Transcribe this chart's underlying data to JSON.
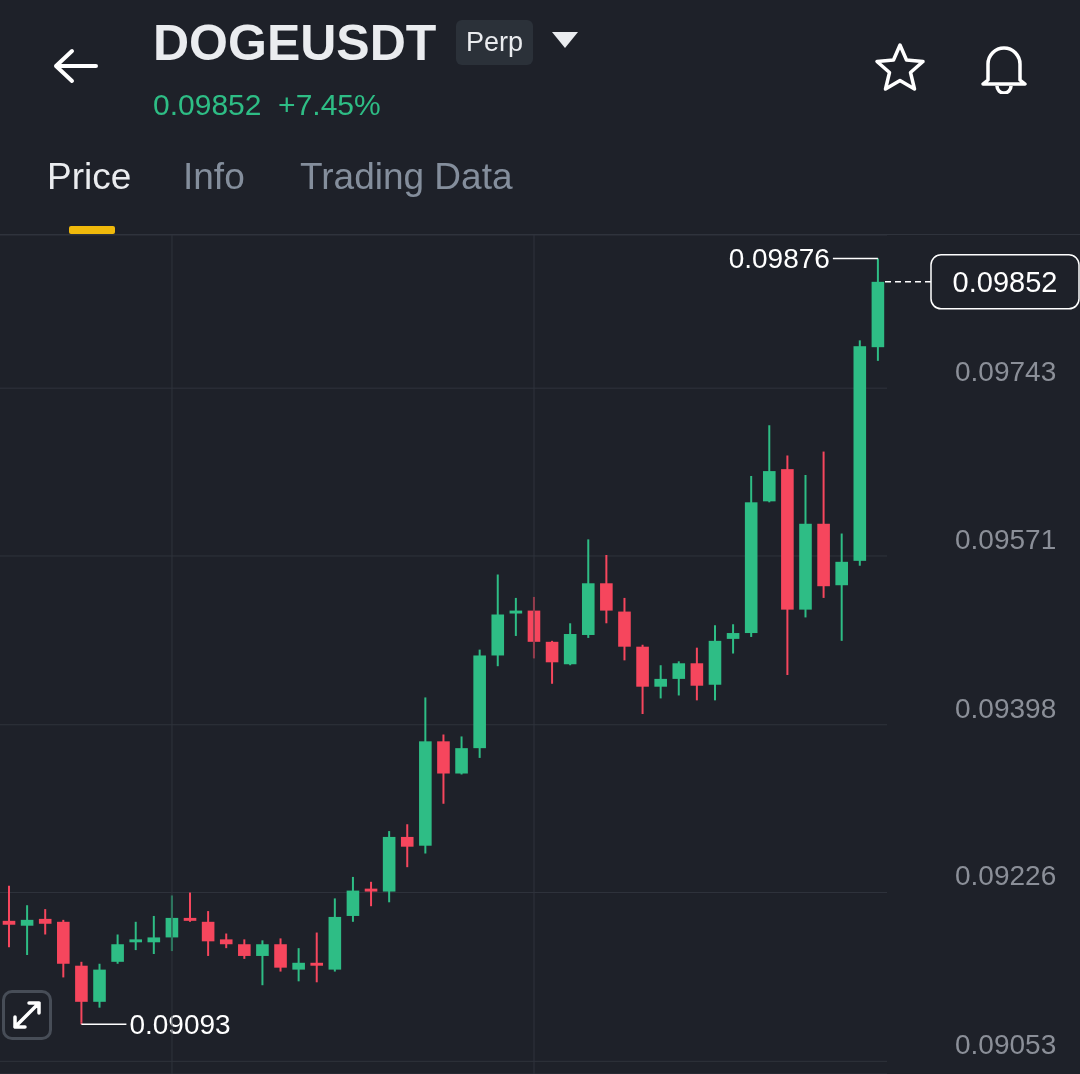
{
  "chart_data": {
    "type": "candlestick",
    "title": "DOGEUSDT",
    "subtitle": "Perp",
    "annotations": [
      "0.09852 +7.45%",
      "Price",
      "Info",
      "Trading Data",
      "0.09876",
      "0.09093"
    ],
    "categories": [
      null,
      null,
      null,
      null,
      null,
      null,
      null,
      null,
      null,
      null,
      null,
      null,
      null,
      null,
      null,
      null,
      null,
      null,
      null,
      null,
      null,
      null,
      null,
      null,
      null,
      null,
      null,
      null,
      null,
      null,
      null,
      null,
      null,
      null,
      null,
      null,
      null,
      null,
      null,
      null,
      null,
      null,
      null,
      null,
      null,
      null,
      null,
      null,
      null
    ],
    "ohlc": [
      [
        0.09197,
        0.09233,
        0.0917,
        0.09193
      ],
      [
        0.09192,
        0.09213,
        0.09162,
        0.09198
      ],
      [
        0.09199,
        0.09209,
        0.09183,
        0.09194
      ],
      [
        0.09196,
        0.09198,
        0.09139,
        0.09153
      ],
      [
        0.09151,
        0.09155,
        0.09093,
        0.09114
      ],
      [
        0.09114,
        0.09153,
        0.09108,
        0.09147
      ],
      [
        0.09155,
        0.09183,
        0.09153,
        0.09173
      ],
      [
        0.09175,
        0.09196,
        0.09167,
        0.09178
      ],
      [
        0.09175,
        0.09202,
        0.09163,
        0.0918
      ],
      [
        0.0918,
        0.09223,
        0.09166,
        0.092
      ],
      [
        0.092,
        0.09226,
        0.09196,
        0.09197
      ],
      [
        0.09196,
        0.09207,
        0.09161,
        0.09176
      ],
      [
        0.09178,
        0.09184,
        0.09169,
        0.09173
      ],
      [
        0.09173,
        0.09178,
        0.09158,
        0.09161
      ],
      [
        0.09161,
        0.09177,
        0.09131,
        0.09173
      ],
      [
        0.09173,
        0.09179,
        0.09145,
        0.09149
      ],
      [
        0.09147,
        0.09169,
        0.09135,
        0.09154
      ],
      [
        0.09154,
        0.09185,
        0.09134,
        0.09151
      ],
      [
        0.09147,
        0.0922,
        0.09145,
        0.09201
      ],
      [
        0.09202,
        0.09242,
        0.09196,
        0.09228
      ],
      [
        0.0923,
        0.09237,
        0.09212,
        0.09227
      ],
      [
        0.09227,
        0.09289,
        0.09216,
        0.09283
      ],
      [
        0.09283,
        0.09296,
        0.09252,
        0.09273
      ],
      [
        0.09274,
        0.09426,
        0.09266,
        0.09381
      ],
      [
        0.09381,
        0.09388,
        0.09317,
        0.09348
      ],
      [
        0.09348,
        0.09386,
        0.09347,
        0.09374
      ],
      [
        0.09374,
        0.09475,
        0.09364,
        0.09469
      ],
      [
        0.09469,
        0.09552,
        0.09458,
        0.09511
      ],
      [
        0.09512,
        0.09528,
        0.09489,
        0.09515
      ],
      [
        0.09515,
        0.09529,
        0.09466,
        0.09483
      ],
      [
        0.09483,
        0.09484,
        0.0944,
        0.09462
      ],
      [
        0.0946,
        0.09502,
        0.09459,
        0.09491
      ],
      [
        0.0949,
        0.09588,
        0.09487,
        0.09543
      ],
      [
        0.09543,
        0.09572,
        0.09502,
        0.09515
      ],
      [
        0.09514,
        0.09528,
        0.09464,
        0.09478
      ],
      [
        0.09478,
        0.0948,
        0.09409,
        0.09437
      ],
      [
        0.09437,
        0.09459,
        0.09425,
        0.09445
      ],
      [
        0.09445,
        0.09463,
        0.09428,
        0.09461
      ],
      [
        0.09461,
        0.09477,
        0.09423,
        0.09438
      ],
      [
        0.09439,
        0.095,
        0.09423,
        0.09484
      ],
      [
        0.09486,
        0.09501,
        0.09471,
        0.09492
      ],
      [
        0.09492,
        0.09653,
        0.09488,
        0.09626
      ],
      [
        0.09627,
        0.09705,
        0.09626,
        0.09658
      ],
      [
        0.0966,
        0.09674,
        0.09449,
        0.09516
      ],
      [
        0.09516,
        0.09654,
        0.09508,
        0.09604
      ],
      [
        0.09604,
        0.09678,
        0.09528,
        0.0954
      ],
      [
        0.09541,
        0.09594,
        0.09484,
        0.09565
      ],
      [
        0.09566,
        0.09792,
        0.09561,
        0.09786
      ],
      [
        0.09785,
        0.09876,
        0.09771,
        0.09852
      ]
    ],
    "colors": [
      "#f6465d",
      "#2ebd85",
      "#f6465d",
      "#f6465d",
      "#f6465d",
      "#2ebd85",
      "#2ebd85",
      "#2ebd85",
      "#2ebd85",
      "#2ebd85",
      "#f6465d",
      "#f6465d",
      "#f6465d",
      "#f6465d",
      "#2ebd85",
      "#f6465d",
      "#2ebd85",
      "#f6465d",
      "#2ebd85",
      "#2ebd85",
      "#f6465d",
      "#2ebd85",
      "#f6465d",
      "#2ebd85",
      "#f6465d",
      "#2ebd85",
      "#2ebd85",
      "#2ebd85",
      "#2ebd85",
      "#f6465d",
      "#f6465d",
      "#2ebd85",
      "#2ebd85",
      "#f6465d",
      "#f6465d",
      "#f6465d",
      "#2ebd85",
      "#2ebd85",
      "#f6465d",
      "#2ebd85",
      "#2ebd85",
      "#2ebd85",
      "#2ebd85",
      "#f6465d",
      "#2ebd85",
      "#f6465d",
      "#2ebd85",
      "#2ebd85",
      "#2ebd85"
    ],
    "ylim": [
      0.0904,
      0.099
    ],
    "yticks": [
      0.09053,
      0.09226,
      0.09398,
      0.09571,
      0.09743
    ],
    "ref_lines": [
      {
        "axis": "y",
        "value": 0.09852,
        "label": "0.09852",
        "line_style": "dashed",
        "color": "#ffffff"
      }
    ],
    "grid": "y",
    "tick_labels": "y"
  }
}
